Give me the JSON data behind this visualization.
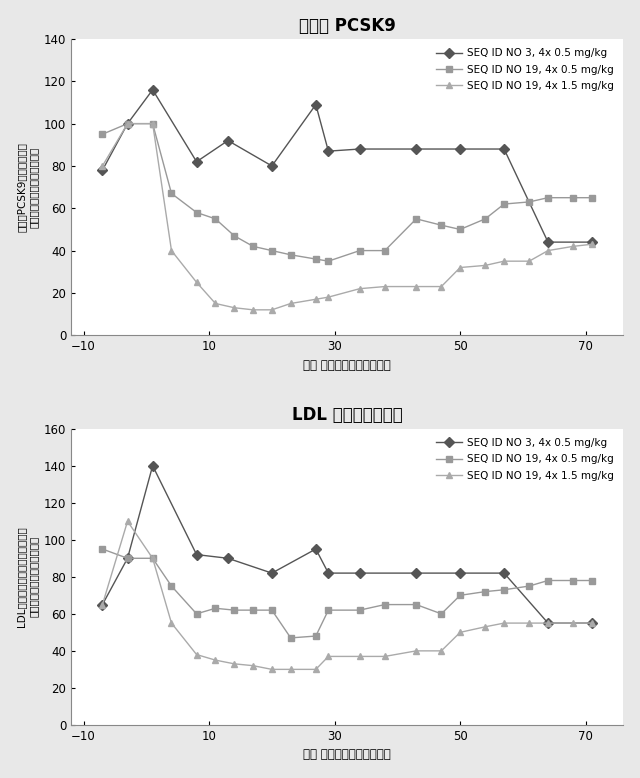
{
  "plot1": {
    "title": "血潏中 PCSK9",
    "ylabel_line1": "血潏中PCSK9（平均投薬前",
    "ylabel_line2": "レベルに対するパーセント）",
    "xlabel": "時間 （調査開始後の日数）",
    "ylim": [
      0,
      140
    ],
    "yticks": [
      0,
      20,
      40,
      60,
      80,
      100,
      120,
      140
    ],
    "xlim": [
      -12,
      76
    ],
    "xticks": [
      -10,
      10,
      30,
      50,
      70
    ],
    "series": [
      {
        "label": "SEQ ID NO 3, 4x 0.5 mg/kg",
        "color": "#555555",
        "marker": "D",
        "markersize": 5,
        "x": [
          -7,
          -3,
          1,
          8,
          13,
          20,
          27,
          29,
          34,
          43,
          50,
          57,
          64,
          71
        ],
        "y": [
          78,
          100,
          116,
          82,
          92,
          80,
          109,
          87,
          88,
          88,
          88,
          88,
          44,
          44
        ]
      },
      {
        "label": "SEQ ID NO 19, 4x 0.5 mg/kg",
        "color": "#999999",
        "marker": "s",
        "markersize": 5,
        "x": [
          -7,
          -3,
          1,
          4,
          8,
          11,
          14,
          17,
          20,
          23,
          27,
          29,
          34,
          38,
          43,
          47,
          50,
          54,
          57,
          61,
          64,
          68,
          71
        ],
        "y": [
          95,
          100,
          100,
          67,
          58,
          55,
          47,
          42,
          40,
          38,
          36,
          35,
          40,
          40,
          55,
          52,
          50,
          55,
          62,
          63,
          65,
          65,
          65
        ]
      },
      {
        "label": "SEQ ID NO 19, 4x 1.5 mg/kg",
        "color": "#aaaaaa",
        "marker": "^",
        "markersize": 5,
        "x": [
          -7,
          -3,
          1,
          4,
          8,
          11,
          14,
          17,
          20,
          23,
          27,
          29,
          34,
          38,
          43,
          47,
          50,
          54,
          57,
          61,
          64,
          68,
          71
        ],
        "y": [
          80,
          100,
          100,
          40,
          25,
          15,
          13,
          12,
          12,
          15,
          17,
          18,
          22,
          23,
          23,
          23,
          32,
          33,
          35,
          35,
          40,
          42,
          43
        ]
      }
    ]
  },
  "plot2": {
    "title": "LDL コレステロール",
    "ylabel_line1": "LDLコレステロール（平均投薬前",
    "ylabel_line2": "レベルに対するパーセント）",
    "xlabel": "時間 （調査開始後の日数）",
    "ylim": [
      0,
      160
    ],
    "yticks": [
      0,
      20,
      40,
      60,
      80,
      100,
      120,
      140,
      160
    ],
    "xlim": [
      -12,
      76
    ],
    "xticks": [
      -10,
      10,
      30,
      50,
      70
    ],
    "series": [
      {
        "label": "SEQ ID NO 3, 4x 0.5 mg/kg",
        "color": "#555555",
        "marker": "D",
        "markersize": 5,
        "x": [
          -7,
          -3,
          1,
          8,
          13,
          20,
          27,
          29,
          34,
          43,
          50,
          57,
          64,
          71
        ],
        "y": [
          65,
          90,
          140,
          92,
          90,
          82,
          95,
          82,
          82,
          82,
          82,
          82,
          55,
          55
        ]
      },
      {
        "label": "SEQ ID NO 19, 4x 0.5 mg/kg",
        "color": "#999999",
        "marker": "s",
        "markersize": 5,
        "x": [
          -7,
          -3,
          1,
          4,
          8,
          11,
          14,
          17,
          20,
          23,
          27,
          29,
          34,
          38,
          43,
          47,
          50,
          54,
          57,
          61,
          64,
          68,
          71
        ],
        "y": [
          95,
          90,
          90,
          75,
          60,
          63,
          62,
          62,
          62,
          47,
          48,
          62,
          62,
          65,
          65,
          60,
          70,
          72,
          73,
          75,
          78,
          78,
          78
        ]
      },
      {
        "label": "SEQ ID NO 19, 4x 1.5 mg/kg",
        "color": "#aaaaaa",
        "marker": "^",
        "markersize": 5,
        "x": [
          -7,
          -3,
          1,
          4,
          8,
          11,
          14,
          17,
          20,
          23,
          27,
          29,
          34,
          38,
          43,
          47,
          50,
          54,
          57,
          61,
          64,
          68,
          71
        ],
        "y": [
          65,
          110,
          90,
          55,
          38,
          35,
          33,
          32,
          30,
          30,
          30,
          37,
          37,
          37,
          40,
          40,
          50,
          53,
          55,
          55,
          55,
          55,
          55
        ]
      }
    ]
  },
  "bg_color": "#e8e8e8",
  "plot_bg_color": "#ffffff",
  "border_color": "#cccccc"
}
